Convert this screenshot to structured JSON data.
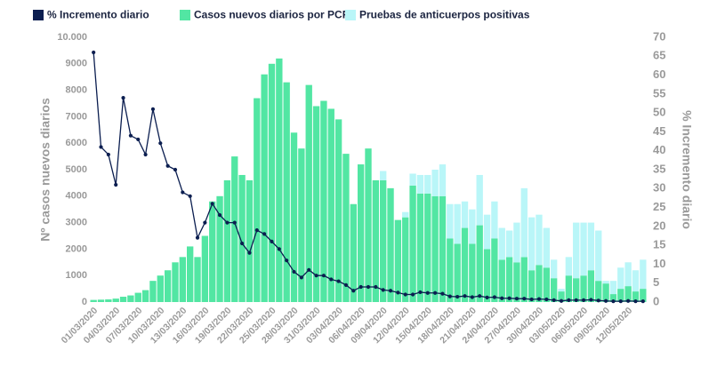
{
  "chart_data": {
    "type": "bar",
    "stacked": true,
    "y_label": "Nº casos nuevos diarios",
    "y2_label": "% Incremento diario",
    "categories": [
      "01/03/2020",
      null,
      null,
      "04/03/2020",
      null,
      null,
      "07/03/2020",
      null,
      null,
      "10/03/2020",
      null,
      null,
      "13/03/2020",
      null,
      null,
      "16/03/2020",
      null,
      null,
      "19/03/2020",
      null,
      null,
      "22/03/2020",
      null,
      null,
      "25/03/2020",
      null,
      null,
      "28/03/2020",
      null,
      null,
      "31/03/2020",
      null,
      null,
      "03/04/2020",
      null,
      null,
      "06/04/2020",
      null,
      null,
      "09/04/2020",
      null,
      null,
      "12/04/2020",
      null,
      null,
      "15/04/2020",
      null,
      null,
      "18/04/2020",
      null,
      null,
      "21/04/2020",
      null,
      null,
      "24/04/2020",
      null,
      null,
      "27/04/2020",
      null,
      null,
      "30/04/2020",
      null,
      null,
      "03/05/2020",
      null,
      null,
      "06/05/2020",
      null,
      null,
      "09/05/2020",
      null,
      null,
      "12/05/2020",
      null,
      null
    ],
    "series": [
      {
        "name": "% Incremento diario",
        "color": "#0b1e50",
        "type": "line",
        "axis": "y2",
        "values": [
          66,
          41,
          39,
          31,
          54,
          44,
          43,
          39,
          51,
          42,
          36,
          35,
          29,
          28,
          17,
          21,
          26,
          23,
          21,
          21,
          15.5,
          13,
          19,
          18,
          16,
          14,
          11,
          8,
          6.5,
          8.5,
          7,
          7,
          6,
          5.5,
          4.5,
          3,
          4,
          4,
          4,
          3.2,
          3,
          2.5,
          2,
          2,
          2.6,
          2.4,
          2.4,
          2.2,
          1.5,
          1.4,
          1.6,
          1.3,
          1.6,
          1.2,
          1.3,
          1,
          1,
          0.9,
          0.9,
          0.7,
          0.8,
          0.7,
          0.5,
          0.3,
          0.5,
          0.5,
          0.5,
          0.6,
          0.4,
          0.3,
          0.2,
          0.2,
          0.3,
          0.2,
          0.2
        ]
      },
      {
        "name": "Casos nuevos diarios por PCR",
        "color": "#52e6a3",
        "type": "bar",
        "values": [
          80,
          90,
          100,
          130,
          200,
          250,
          350,
          450,
          800,
          1000,
          1200,
          1500,
          1700,
          2100,
          1700,
          2500,
          3800,
          4000,
          4600,
          5500,
          4800,
          4600,
          7700,
          8600,
          9000,
          9200,
          8300,
          6400,
          5800,
          8200,
          7400,
          7600,
          7300,
          6900,
          5600,
          3700,
          5200,
          5800,
          4600,
          4600,
          4300,
          3100,
          3200,
          4400,
          4100,
          4100,
          4000,
          4000,
          2400,
          2200,
          2800,
          2200,
          2900,
          2000,
          2400,
          1600,
          1700,
          1500,
          1700,
          1200,
          1400,
          1300,
          900,
          400,
          1000,
          900,
          1000,
          1200,
          800,
          700,
          300,
          500,
          600,
          400,
          500
        ]
      },
      {
        "name": "Pruebas de anticuerpos positivas",
        "color": "#b9f6f8",
        "type": "bar",
        "values": [
          0,
          0,
          0,
          0,
          0,
          0,
          0,
          0,
          0,
          0,
          0,
          0,
          0,
          0,
          0,
          0,
          0,
          0,
          0,
          0,
          0,
          0,
          0,
          0,
          0,
          0,
          0,
          0,
          0,
          0,
          0,
          0,
          0,
          0,
          0,
          0,
          0,
          0,
          0,
          350,
          0,
          0,
          200,
          450,
          700,
          700,
          1000,
          1200,
          1300,
          1500,
          1000,
          1300,
          1900,
          1300,
          1400,
          1200,
          1000,
          1500,
          2600,
          2000,
          1900,
          1500,
          700,
          100,
          700,
          2100,
          2000,
          1800,
          1900,
          100,
          500,
          800,
          900,
          800,
          1100
        ]
      }
    ],
    "ylim": [
      0,
      10000
    ],
    "yticks": [
      0,
      1000,
      2000,
      3000,
      4000,
      5000,
      6000,
      7000,
      8000,
      9000,
      {
        "value": 10000,
        "label": "10.000"
      }
    ],
    "y2lim": [
      0,
      70
    ],
    "y2ticks": [
      0,
      5,
      10,
      15,
      20,
      25,
      30,
      35,
      40,
      45,
      50,
      55,
      60,
      65,
      70
    ],
    "grid": false,
    "legend": "top-left"
  }
}
